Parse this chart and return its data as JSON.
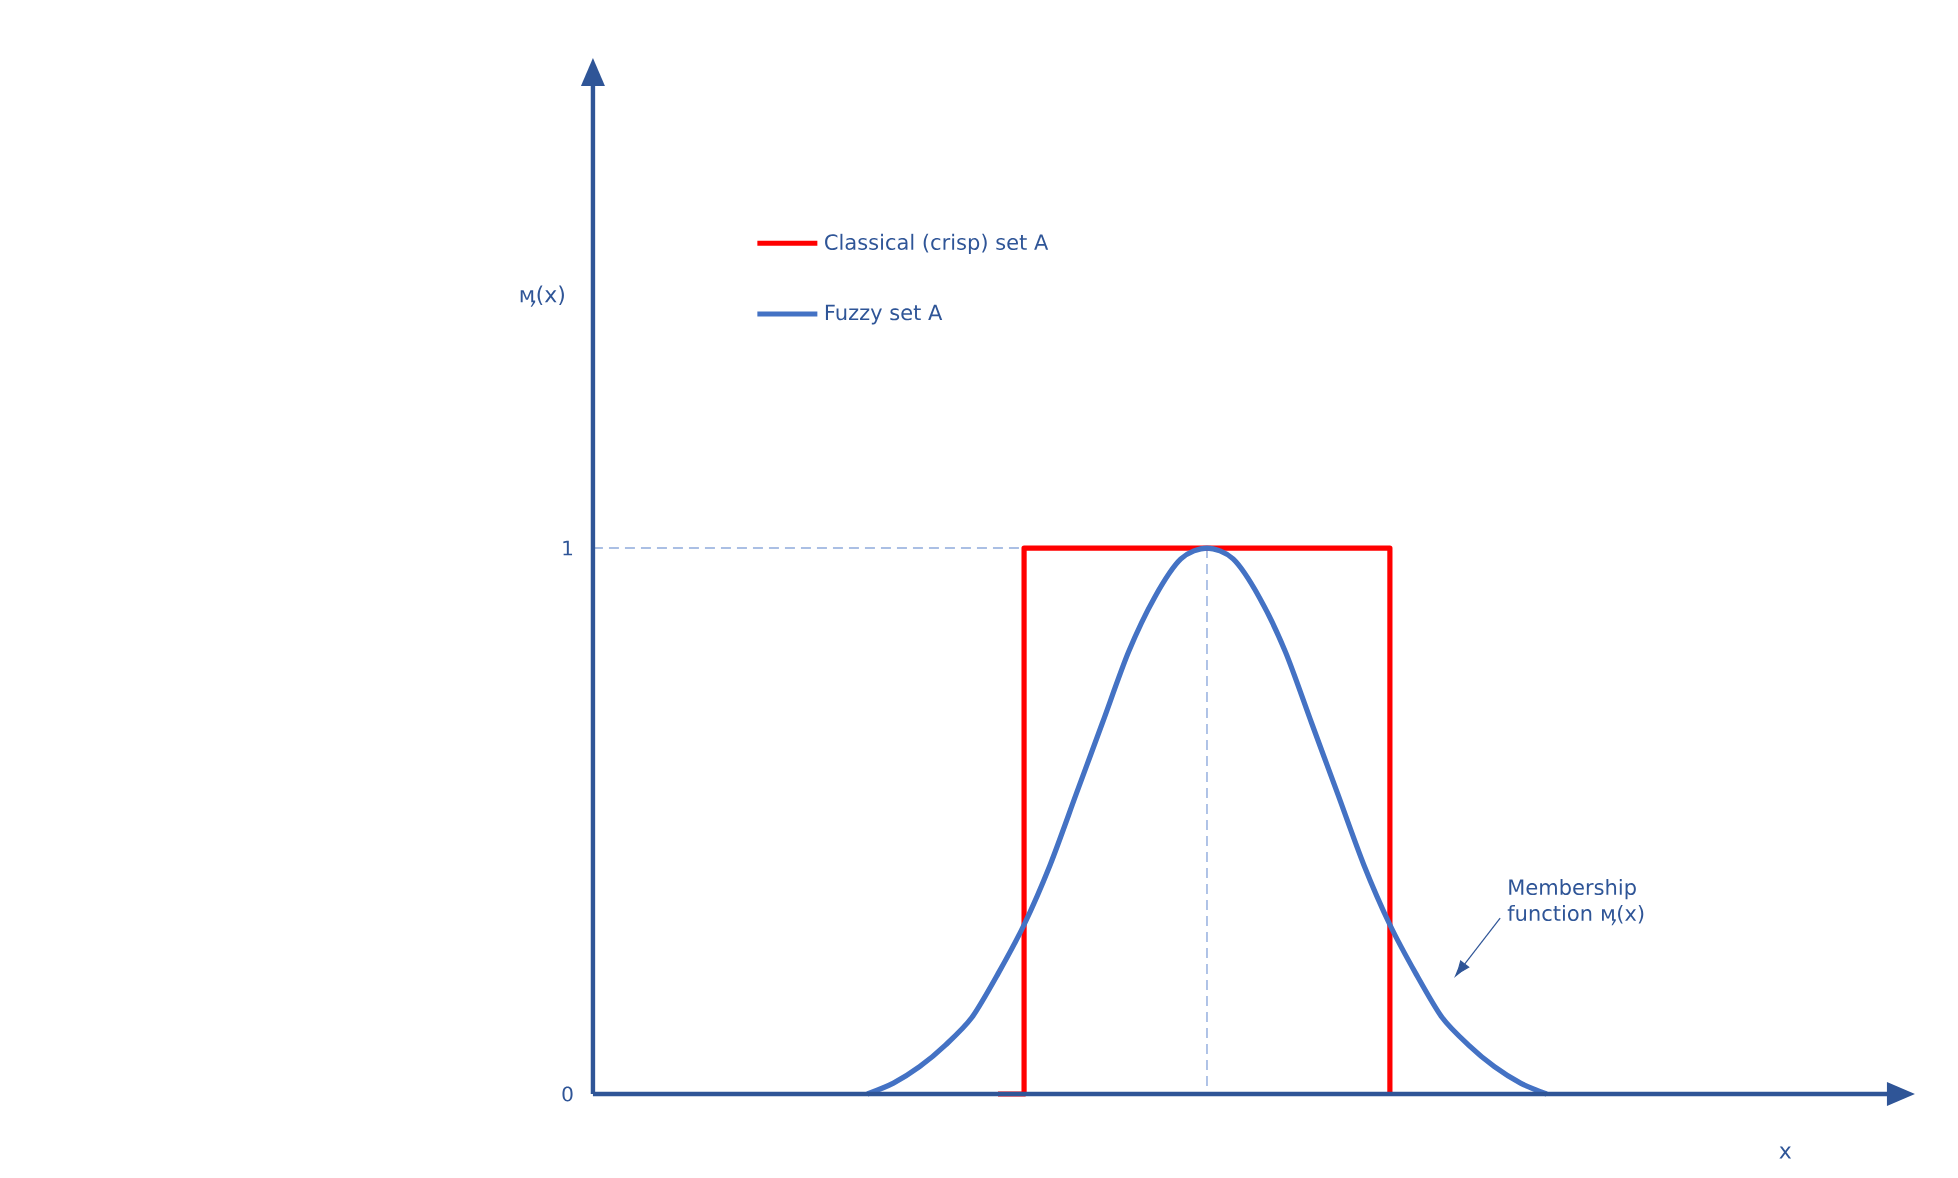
{
  "chart_data": {
    "type": "line",
    "ylabel": "ӎ(x)",
    "categories": [
      null,
      null,
      null,
      null,
      null,
      null,
      null,
      null,
      null,
      null,
      null,
      null,
      null,
      null,
      null,
      null,
      null,
      null,
      null,
      null,
      null,
      null,
      null,
      null,
      null,
      null,
      null,
      null,
      null,
      null,
      null,
      null,
      null,
      null,
      null,
      null,
      null
    ],
    "series": [
      {
        "name": "Classical (crisp) set A",
        "type": "step",
        "color": "#ff0000",
        "values": [
          null,
          null,
          null,
          null,
          null,
          null,
          null,
          null,
          null,
          null,
          null,
          null,
          null,
          null,
          null,
          0,
          1,
          1,
          1,
          1,
          1,
          1,
          1,
          1,
          1,
          1,
          1,
          1,
          1,
          1,
          0,
          null,
          null,
          null,
          null,
          null,
          null
        ]
      },
      {
        "name": "Fuzzy set A",
        "color": "#4472c4",
        "values": [
          null,
          null,
          null,
          null,
          null,
          null,
          null,
          null,
          null,
          null,
          0,
          0.02,
          0.05,
          0.09,
          0.14,
          0.22,
          0.31,
          0.42,
          0.55,
          0.68,
          0.81,
          0.91,
          0.98,
          1,
          0.98,
          0.91,
          0.81,
          0.68,
          0.55,
          0.42,
          0.31,
          0.22,
          0.14,
          0.09,
          0.05,
          0.02,
          0
        ]
      }
    ],
    "ylim": [
      0,
      1.85
    ],
    "yticks": [
      0,
      1
    ],
    "tick_labels": "y",
    "ref_lines": [
      {
        "axis": "y",
        "value": 1,
        "line_style": "dashed",
        "color": "#8faadc"
      }
    ],
    "annotations": [
      "Membership function ӎ(x)",
      "x"
    ],
    "legend": "top"
  }
}
